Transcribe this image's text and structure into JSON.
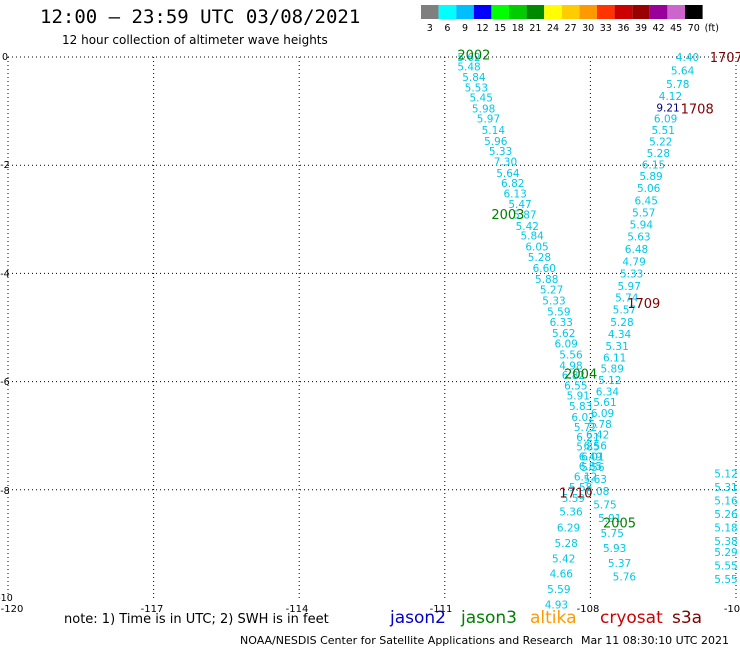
{
  "header": {
    "title": "12:00 – 23:59 UTC 03/08/2021",
    "subtitle": "12 hour collection of altimeter wave heights"
  },
  "legend": {
    "unit": "(ft)",
    "bins": [
      {
        "label": "3",
        "color": "#7f7f7f"
      },
      {
        "label": "6",
        "color": "#00ffff"
      },
      {
        "label": "9",
        "color": "#00bfff"
      },
      {
        "label": "12",
        "color": "#0000ff"
      },
      {
        "label": "15",
        "color": "#00ff00"
      },
      {
        "label": "18",
        "color": "#00cc00"
      },
      {
        "label": "21",
        "color": "#008800"
      },
      {
        "label": "24",
        "color": "#ffff00"
      },
      {
        "label": "27",
        "color": "#ffcc00"
      },
      {
        "label": "30",
        "color": "#ff9900"
      },
      {
        "label": "33",
        "color": "#ff3300"
      },
      {
        "label": "36",
        "color": "#cc0000"
      },
      {
        "label": "39",
        "color": "#990000"
      },
      {
        "label": "42",
        "color": "#990099"
      },
      {
        "label": "45",
        "color": "#cc66cc"
      },
      {
        "label": "70",
        "color": "#000000"
      }
    ]
  },
  "axes": {
    "x_ticks": [
      "-120",
      "-117",
      "-114",
      "-111",
      "-108",
      "-10"
    ],
    "y_ticks": [
      "0",
      "-2",
      "-4",
      "-6",
      "-8",
      "-10"
    ]
  },
  "colors": {
    "swh_cyan": "#00c8e6",
    "swh_navy": "#000080",
    "pass_jason3": "#008000",
    "pass_s3a": "#800000"
  },
  "pass_labels": [
    {
      "text": "2002",
      "x": -110.4,
      "y": 0.05,
      "color": "#008000"
    },
    {
      "text": "2003",
      "x": -109.7,
      "y": -2.9,
      "color": "#008000"
    },
    {
      "text": "2004",
      "x": -108.2,
      "y": -5.85,
      "color": "#008000"
    },
    {
      "text": "2005",
      "x": -107.4,
      "y": -8.6,
      "color": "#008000"
    },
    {
      "text": "1707",
      "x": -105.2,
      "y": 0,
      "color": "#800000"
    },
    {
      "text": "1708",
      "x": -105.8,
      "y": -0.95,
      "color": "#800000"
    },
    {
      "text": "1709",
      "x": -106.9,
      "y": -4.55,
      "color": "#800000"
    },
    {
      "text": "1710",
      "x": -108.3,
      "y": -8.05,
      "color": "#800000"
    }
  ],
  "track_jason3_lines": [
    {
      "v": "5.62",
      "x": -110.5,
      "y": 0
    },
    {
      "v": "5.48",
      "x": -110.5,
      "y": -0.18
    },
    {
      "v": "5.84",
      "x": -110.4,
      "y": -0.37
    },
    {
      "v": "5.53",
      "x": -110.35,
      "y": -0.56
    },
    {
      "v": "5.45",
      "x": -110.25,
      "y": -0.75
    },
    {
      "v": "5.98",
      "x": -110.2,
      "y": -0.95
    },
    {
      "v": "5.97",
      "x": -110.1,
      "y": -1.14
    },
    {
      "v": "5.14",
      "x": -110.0,
      "y": -1.35
    },
    {
      "v": "5.96",
      "x": -109.95,
      "y": -1.55
    },
    {
      "v": "5.33",
      "x": -109.85,
      "y": -1.74
    },
    {
      "v": "7.30",
      "x": -109.75,
      "y": -1.93
    },
    {
      "v": "5.64",
      "x": -109.7,
      "y": -2.14
    },
    {
      "v": "6.82",
      "x": -109.6,
      "y": -2.33
    },
    {
      "v": "6.13",
      "x": -109.55,
      "y": -2.52
    },
    {
      "v": "5.47",
      "x": -109.45,
      "y": -2.72
    },
    {
      "v": "5.87",
      "x": -109.35,
      "y": -2.91
    },
    {
      "v": "5.42",
      "x": -109.3,
      "y": -3.12
    },
    {
      "v": "5.84",
      "x": -109.2,
      "y": -3.3
    },
    {
      "v": "6.05",
      "x": -109.1,
      "y": -3.5
    },
    {
      "v": "5.28",
      "x": -109.05,
      "y": -3.7
    },
    {
      "v": "6.60",
      "x": -108.95,
      "y": -3.9
    },
    {
      "v": "5.88",
      "x": -108.9,
      "y": -4.1
    },
    {
      "v": "5.27",
      "x": -108.8,
      "y": -4.3
    },
    {
      "v": "5.33",
      "x": -108.75,
      "y": -4.5
    },
    {
      "v": "5.59",
      "x": -108.65,
      "y": -4.7
    },
    {
      "v": "6.33",
      "x": -108.6,
      "y": -4.9
    },
    {
      "v": "5.62",
      "x": -108.55,
      "y": -5.1
    },
    {
      "v": "6.09",
      "x": -108.5,
      "y": -5.3
    },
    {
      "v": "5.56",
      "x": -108.4,
      "y": -5.5
    },
    {
      "v": "4.98",
      "x": -108.4,
      "y": -5.7
    },
    {
      "v": "6.82",
      "x": -108.35,
      "y": -5.88
    },
    {
      "v": "6.55",
      "x": -108.3,
      "y": -6.07
    },
    {
      "v": "5.91",
      "x": -108.25,
      "y": -6.26
    },
    {
      "v": "5.83",
      "x": -108.2,
      "y": -6.45
    },
    {
      "v": "6.02",
      "x": -108.15,
      "y": -6.65
    },
    {
      "v": "5.72",
      "x": -108.1,
      "y": -6.84
    },
    {
      "v": "6.21",
      "x": -108.05,
      "y": -7.02
    },
    {
      "v": "5.85",
      "x": -108.05,
      "y": -7.2
    },
    {
      "v": "6.49",
      "x": -108.0,
      "y": -7.38
    },
    {
      "v": "6.85",
      "x": -108.0,
      "y": -7.56
    },
    {
      "v": "6.12",
      "x": -108.1,
      "y": -7.75
    },
    {
      "v": "5.58",
      "x": -108.2,
      "y": -7.95
    },
    {
      "v": "5.59",
      "x": -108.35,
      "y": -8.15
    },
    {
      "v": "5.36",
      "x": -108.4,
      "y": -8.4
    },
    {
      "v": "6.29",
      "x": -108.45,
      "y": -8.7
    },
    {
      "v": "5.28",
      "x": -108.5,
      "y": -8.98
    },
    {
      "v": "5.42",
      "x": -108.55,
      "y": -9.27
    },
    {
      "v": "4.66",
      "x": -108.6,
      "y": -9.55
    },
    {
      "v": "5.59",
      "x": -108.65,
      "y": -9.83
    },
    {
      "v": "4.93",
      "x": -108.7,
      "y": -10.12
    }
  ],
  "track_s3a_lines": [
    {
      "v": "4.40",
      "x": -106.0,
      "y": 0
    },
    {
      "v": "5.64",
      "x": -106.1,
      "y": -0.25
    },
    {
      "v": "5.78",
      "x": -106.2,
      "y": -0.5
    },
    {
      "v": "4.12",
      "x": -106.35,
      "y": -0.72
    },
    {
      "v": "9.21",
      "x": -106.4,
      "y": -0.93
    },
    {
      "v": "6.09",
      "x": -106.45,
      "y": -1.14
    },
    {
      "v": "5.51",
      "x": -106.5,
      "y": -1.35
    },
    {
      "v": "5.22",
      "x": -106.55,
      "y": -1.56
    },
    {
      "v": "5.28",
      "x": -106.6,
      "y": -1.77
    },
    {
      "v": "6.15",
      "x": -106.7,
      "y": -1.99
    },
    {
      "v": "5.89",
      "x": -106.75,
      "y": -2.2
    },
    {
      "v": "5.06",
      "x": -106.8,
      "y": -2.42
    },
    {
      "v": "6.45",
      "x": -106.85,
      "y": -2.65
    },
    {
      "v": "5.57",
      "x": -106.9,
      "y": -2.87
    },
    {
      "v": "5.94",
      "x": -106.95,
      "y": -3.1
    },
    {
      "v": "5.63",
      "x": -107.0,
      "y": -3.32
    },
    {
      "v": "6.48",
      "x": -107.05,
      "y": -3.55
    },
    {
      "v": "4.79",
      "x": -107.1,
      "y": -3.78
    },
    {
      "v": "5.33",
      "x": -107.15,
      "y": -4.0
    },
    {
      "v": "5.97",
      "x": -107.2,
      "y": -4.23
    },
    {
      "v": "5.74",
      "x": -107.25,
      "y": -4.45
    },
    {
      "v": "5.57",
      "x": -107.3,
      "y": -4.67
    },
    {
      "v": "5.28",
      "x": -107.35,
      "y": -4.9
    },
    {
      "v": "4.34",
      "x": -107.4,
      "y": -5.12
    },
    {
      "v": "5.31",
      "x": -107.45,
      "y": -5.34
    },
    {
      "v": "6.11",
      "x": -107.5,
      "y": -5.55
    },
    {
      "v": "5.89",
      "x": -107.55,
      "y": -5.76
    },
    {
      "v": "5.12",
      "x": -107.6,
      "y": -5.97
    },
    {
      "v": "6.34",
      "x": -107.65,
      "y": -6.18
    },
    {
      "v": "5.61",
      "x": -107.7,
      "y": -6.38
    },
    {
      "v": "6.09",
      "x": -107.75,
      "y": -6.58
    },
    {
      "v": "5.78",
      "x": -107.8,
      "y": -6.78
    },
    {
      "v": "6.42",
      "x": -107.85,
      "y": -6.98
    },
    {
      "v": "6.56",
      "x": -107.9,
      "y": -7.18
    },
    {
      "v": "6.01",
      "x": -107.95,
      "y": -7.38
    },
    {
      "v": "5.56",
      "x": -107.95,
      "y": -7.58
    },
    {
      "v": "5.63",
      "x": -107.9,
      "y": -7.8
    },
    {
      "v": "6.08",
      "x": -107.85,
      "y": -8.02
    },
    {
      "v": "5.75",
      "x": -107.7,
      "y": -8.27
    },
    {
      "v": "5.91",
      "x": -107.6,
      "y": -8.52
    },
    {
      "v": "5.75",
      "x": -107.55,
      "y": -8.8
    },
    {
      "v": "5.93",
      "x": -107.5,
      "y": -9.08
    },
    {
      "v": "5.37",
      "x": -107.4,
      "y": -9.35
    },
    {
      "v": "5.76",
      "x": -107.3,
      "y": -9.6
    }
  ],
  "east_edge_values": [
    {
      "v": "5.12",
      "x": -104.6,
      "y": -7.7
    },
    {
      "v": "5.31",
      "x": -104.6,
      "y": -7.95
    },
    {
      "v": "5.16",
      "x": -104.7,
      "y": -8.2
    },
    {
      "v": "5.26",
      "x": -104.6,
      "y": -8.45
    },
    {
      "v": "5.18",
      "x": -104.7,
      "y": -8.7
    },
    {
      "v": "5.38",
      "x": -104.6,
      "y": -8.95
    },
    {
      "v": "5.29",
      "x": -104.7,
      "y": -9.15
    },
    {
      "v": "5.55",
      "x": -104.7,
      "y": -9.4
    },
    {
      "v": "5.55",
      "x": -104.8,
      "y": -9.65
    }
  ],
  "footer": {
    "note": "note: 1) Time is in UTC; 2) SWH is in feet",
    "missions": [
      {
        "label": "jason2",
        "color": "#0000cc"
      },
      {
        "label": "jason3",
        "color": "#008000"
      },
      {
        "label": "altika",
        "color": "#ff9900"
      },
      {
        "label": "cryosat",
        "color": "#cc0000"
      },
      {
        "label": "s3a",
        "color": "#800000"
      }
    ],
    "credit": "NOAA/NESDIS Center for Satellite Applications and Research",
    "timestamp": "Mar 11 08:30:10 UTC 2021"
  }
}
